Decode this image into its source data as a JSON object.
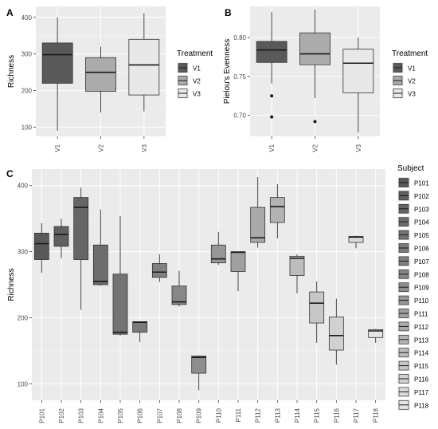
{
  "chart_data": [
    {
      "panel": "A",
      "type": "boxplot",
      "xlabel": "",
      "ylabel": "Richness",
      "ylim": [
        75,
        430
      ],
      "yticks": [
        100,
        200,
        300,
        400
      ],
      "categories": [
        "V1",
        "V2",
        "V3"
      ],
      "legend": {
        "title": "Treatment",
        "position": "right",
        "items": [
          "V1",
          "V2",
          "V3"
        ]
      },
      "colors": {
        "V1": "#595959",
        "V2": "#ababab",
        "V3": "#e8e8e8"
      },
      "boxes": [
        {
          "label": "V1",
          "min": 90,
          "q1": 220,
          "median": 298,
          "q3": 330,
          "max": 400,
          "outliers": []
        },
        {
          "label": "V2",
          "min": 140,
          "q1": 198,
          "median": 250,
          "q3": 290,
          "max": 320,
          "outliers": []
        },
        {
          "label": "V3",
          "min": 143,
          "q1": 188,
          "median": 270,
          "q3": 340,
          "max": 412,
          "outliers": []
        }
      ]
    },
    {
      "panel": "B",
      "type": "boxplot",
      "xlabel": "",
      "ylabel": "Pielou's Evenness",
      "ylim": [
        0.673,
        0.84
      ],
      "yticks": [
        0.7,
        0.75,
        0.8
      ],
      "ytick_labels": [
        "0.70",
        "0.75",
        "0.80"
      ],
      "categories": [
        "V1",
        "V2",
        "V3"
      ],
      "legend": {
        "title": "Treatment",
        "position": "right",
        "items": [
          "V1",
          "V2",
          "V3"
        ]
      },
      "colors": {
        "V1": "#595959",
        "V2": "#ababab",
        "V3": "#e8e8e8"
      },
      "boxes": [
        {
          "label": "V1",
          "min": 0.741,
          "q1": 0.768,
          "median": 0.784,
          "q3": 0.795,
          "max": 0.833,
          "outliers": [
            0.725,
            0.698
          ]
        },
        {
          "label": "V2",
          "min": 0.722,
          "q1": 0.765,
          "median": 0.779,
          "q3": 0.806,
          "max": 0.836,
          "outliers": [
            0.692
          ]
        },
        {
          "label": "V3",
          "min": 0.678,
          "q1": 0.729,
          "median": 0.767,
          "q3": 0.785,
          "max": 0.8,
          "outliers": []
        }
      ]
    },
    {
      "panel": "C",
      "type": "boxplot",
      "xlabel": "",
      "ylabel": "Richness",
      "ylim": [
        75,
        425
      ],
      "yticks": [
        100,
        200,
        300,
        400
      ],
      "categories": [
        "P101",
        "P102",
        "P103",
        "P104",
        "P105",
        "P106",
        "P107",
        "P108",
        "P109",
        "P110",
        "P111",
        "P112",
        "P113",
        "P114",
        "P115",
        "P116",
        "P117",
        "P118"
      ],
      "legend": {
        "title": "Subject",
        "position": "right",
        "items": [
          "P101",
          "P102",
          "P103",
          "P104",
          "P105",
          "P106",
          "P107",
          "P108",
          "P109",
          "P110",
          "P111",
          "P112",
          "P113",
          "P114",
          "P115",
          "P116",
          "P117",
          "P118"
        ]
      },
      "colors": {
        "P101": "#595959",
        "P102": "#606060",
        "P103": "#666666",
        "P104": "#6d6d6d",
        "P105": "#737373",
        "P106": "#7a7a7a",
        "P107": "#808080",
        "P108": "#878787",
        "P109": "#8e8e8e",
        "P110": "#979797",
        "P111": "#a0a0a0",
        "P112": "#aaaaaa",
        "P113": "#b3b3b3",
        "P114": "#bdbdbd",
        "P115": "#c7c7c7",
        "P116": "#d1d1d1",
        "P117": "#dbdbdb",
        "P118": "#e5e5e5"
      },
      "boxes": [
        {
          "label": "P101",
          "min": 268,
          "q1": 288,
          "median": 312,
          "q3": 328,
          "max": 343,
          "outliers": []
        },
        {
          "label": "P102",
          "min": 290,
          "q1": 308,
          "median": 326,
          "q3": 338,
          "max": 350,
          "outliers": []
        },
        {
          "label": "P103",
          "min": 212,
          "q1": 288,
          "median": 367,
          "q3": 382,
          "max": 397,
          "outliers": []
        },
        {
          "label": "P104",
          "min": 248,
          "q1": 250,
          "median": 255,
          "q3": 310,
          "max": 364,
          "outliers": []
        },
        {
          "label": "P105",
          "min": 173,
          "q1": 175,
          "median": 178,
          "q3": 266,
          "max": 354,
          "outliers": []
        },
        {
          "label": "P106",
          "min": 163,
          "q1": 178,
          "median": 193,
          "q3": 194,
          "max": 194,
          "outliers": []
        },
        {
          "label": "P107",
          "min": 254,
          "q1": 261,
          "median": 269,
          "q3": 282,
          "max": 296,
          "outliers": []
        },
        {
          "label": "P108",
          "min": 217,
          "q1": 220,
          "median": 224,
          "q3": 248,
          "max": 271,
          "outliers": []
        },
        {
          "label": "P109",
          "min": 90,
          "q1": 116,
          "median": 140,
          "q3": 142,
          "max": 143,
          "outliers": []
        },
        {
          "label": "P110",
          "min": 280,
          "q1": 283,
          "median": 289,
          "q3": 310,
          "max": 330,
          "outliers": []
        },
        {
          "label": "P111",
          "min": 240,
          "q1": 270,
          "median": 299,
          "q3": 300,
          "max": 300,
          "outliers": []
        },
        {
          "label": "P112",
          "min": 306,
          "q1": 314,
          "median": 321,
          "q3": 367,
          "max": 413,
          "outliers": []
        },
        {
          "label": "P113",
          "min": 320,
          "q1": 344,
          "median": 368,
          "q3": 382,
          "max": 402,
          "outliers": []
        },
        {
          "label": "P114",
          "min": 237,
          "q1": 264,
          "median": 290,
          "q3": 293,
          "max": 296,
          "outliers": []
        },
        {
          "label": "P115",
          "min": 162,
          "q1": 192,
          "median": 222,
          "q3": 239,
          "max": 255,
          "outliers": []
        },
        {
          "label": "P116",
          "min": 129,
          "q1": 151,
          "median": 173,
          "q3": 201,
          "max": 229,
          "outliers": []
        },
        {
          "label": "P117",
          "min": 305,
          "q1": 314,
          "median": 322,
          "q3": 323,
          "max": 324,
          "outliers": []
        },
        {
          "label": "P118",
          "min": 162,
          "q1": 170,
          "median": 180,
          "q3": 182,
          "max": 183,
          "outliers": []
        }
      ]
    }
  ]
}
